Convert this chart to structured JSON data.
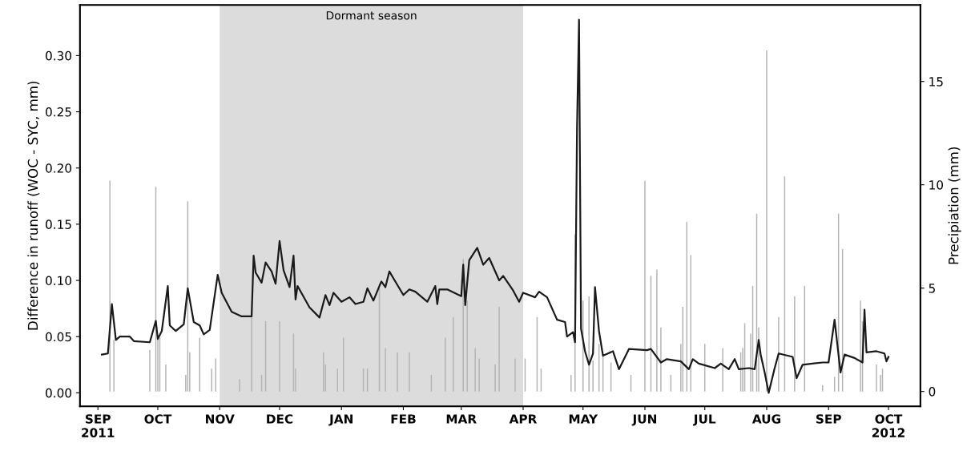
{
  "chart_data": {
    "type": "line",
    "xlabel": null,
    "ylabel": "Difference in runoff (WOC - SYC, mm)",
    "y2label": "Precipiation (mm)",
    "xlim": [
      "2011-08-23",
      "2012-10-17"
    ],
    "xticks": [
      {
        "value": "2011-09-01",
        "label": "SEP\n2011"
      },
      {
        "value": "2011-10-01",
        "label": "OCT"
      },
      {
        "value": "2011-11-01",
        "label": "NOV"
      },
      {
        "value": "2011-12-01",
        "label": "DEC"
      },
      {
        "value": "2012-01-01",
        "label": "JAN"
      },
      {
        "value": "2012-02-01",
        "label": "FEB"
      },
      {
        "value": "2012-03-01",
        "label": "MAR"
      },
      {
        "value": "2012-04-01",
        "label": "APR"
      },
      {
        "value": "2012-05-01",
        "label": "MAY"
      },
      {
        "value": "2012-06-01",
        "label": "JUN"
      },
      {
        "value": "2012-07-01",
        "label": "JUL"
      },
      {
        "value": "2012-08-01",
        "label": "AUG"
      },
      {
        "value": "2012-09-01",
        "label": "SEP"
      },
      {
        "value": "2012-10-01",
        "label": "OCT\n2012"
      }
    ],
    "ylim": [
      -0.012,
      0.345
    ],
    "yticks": [
      {
        "value": 0,
        "label": "0.00"
      },
      {
        "value": 0.05,
        "label": "0.05"
      },
      {
        "value": 0.1,
        "label": "0.10"
      },
      {
        "value": 0.15,
        "label": "0.15"
      },
      {
        "value": 0.2,
        "label": "0.20"
      },
      {
        "value": 0.25,
        "label": "0.25"
      },
      {
        "value": 0.3,
        "label": "0.30"
      }
    ],
    "y2lim": [
      -0.72,
      18.7
    ],
    "y2ticks": [
      0,
      5,
      10,
      15
    ],
    "grid": false,
    "bands": [
      {
        "axis": "x",
        "from": "2011-11-01",
        "to": "2012-04-01",
        "label": "Dormant season",
        "color": "#dcdcdc"
      }
    ],
    "series": [
      {
        "type": "bar",
        "axis": "y2",
        "color": "#b4b4b4",
        "x": [
          "2011-09-07",
          "2011-09-09",
          "2011-09-27",
          "2011-09-30",
          "2011-10-01",
          "2011-10-02",
          "2011-10-05",
          "2011-10-15",
          "2011-10-16",
          "2011-10-17",
          "2011-10-22",
          "2011-10-28",
          "2011-10-30",
          "2011-11-11",
          "2011-11-17",
          "2011-11-22",
          "2011-11-24",
          "2011-12-01",
          "2011-12-08",
          "2011-12-09",
          "2011-12-23",
          "2011-12-24",
          "2011-12-30",
          "2012-01-02",
          "2012-01-12",
          "2012-01-14",
          "2012-01-20",
          "2012-01-23",
          "2012-01-29",
          "2012-02-04",
          "2012-02-15",
          "2012-02-22",
          "2012-02-26",
          "2012-03-02",
          "2012-03-04",
          "2012-03-08",
          "2012-03-10",
          "2012-03-18",
          "2012-03-20",
          "2012-03-28",
          "2012-04-02",
          "2012-04-08",
          "2012-04-10",
          "2012-04-25",
          "2012-04-27",
          "2012-05-01",
          "2012-05-04",
          "2012-05-06",
          "2012-05-09",
          "2012-05-11",
          "2012-05-15",
          "2012-05-25",
          "2012-06-01",
          "2012-06-04",
          "2012-06-07",
          "2012-06-09",
          "2012-06-14",
          "2012-06-19",
          "2012-06-20",
          "2012-06-22",
          "2012-06-24",
          "2012-07-01",
          "2012-07-10",
          "2012-07-19",
          "2012-07-20",
          "2012-07-21",
          "2012-07-24",
          "2012-07-25",
          "2012-07-27",
          "2012-07-28",
          "2012-08-01",
          "2012-08-07",
          "2012-08-10",
          "2012-08-15",
          "2012-08-20",
          "2012-08-29",
          "2012-09-04",
          "2012-09-06",
          "2012-09-08",
          "2012-09-17",
          "2012-09-18",
          "2012-09-25",
          "2012-09-27",
          "2012-09-28"
        ],
        "values": [
          10.2,
          2.5,
          2.0,
          9.9,
          2.6,
          2.6,
          1.3,
          0.8,
          9.2,
          1.9,
          2.6,
          1.1,
          1.6,
          0.6,
          4.4,
          0.8,
          3.4,
          3.4,
          2.8,
          1.1,
          1.9,
          1.3,
          1.1,
          2.6,
          1.1,
          1.1,
          5.0,
          2.1,
          1.9,
          1.9,
          0.8,
          2.6,
          3.6,
          6.4,
          4.4,
          2.1,
          1.6,
          1.3,
          4.1,
          1.6,
          1.6,
          3.6,
          1.1,
          0.8,
          7.6,
          4.4,
          4.6,
          1.5,
          2.3,
          1.7,
          1.4,
          0.8,
          10.2,
          5.6,
          5.9,
          3.1,
          0.8,
          2.3,
          4.1,
          8.2,
          6.6,
          2.3,
          2.1,
          1.9,
          2.1,
          3.3,
          2.8,
          5.1,
          8.6,
          3.1,
          16.5,
          3.6,
          10.4,
          4.6,
          5.1,
          0.3,
          0.7,
          8.6,
          6.9,
          4.4,
          3.4,
          1.3,
          0.8,
          1.1
        ]
      },
      {
        "color": "#1a1a1a",
        "x": [
          "2011-09-03",
          "2011-09-06",
          "2011-09-08",
          "2011-09-10",
          "2011-09-12",
          "2011-09-17",
          "2011-09-19",
          "2011-09-27",
          "2011-09-30",
          "2011-10-01",
          "2011-10-03",
          "2011-10-06",
          "2011-10-07",
          "2011-10-10",
          "2011-10-14",
          "2011-10-16",
          "2011-10-19",
          "2011-10-22",
          "2011-10-24",
          "2011-10-27",
          "2011-10-31",
          "2011-11-02",
          "2011-11-07",
          "2011-11-12",
          "2011-11-17",
          "2011-11-18",
          "2011-11-19",
          "2011-11-22",
          "2011-11-24",
          "2011-11-27",
          "2011-11-29",
          "2011-12-01",
          "2011-12-03",
          "2011-12-06",
          "2011-12-08",
          "2011-12-09",
          "2011-12-10",
          "2011-12-16",
          "2011-12-21",
          "2011-12-24",
          "2011-12-26",
          "2011-12-28",
          "2012-01-01",
          "2012-01-05",
          "2012-01-08",
          "2012-01-12",
          "2012-01-14",
          "2012-01-17",
          "2012-01-20",
          "2012-01-21",
          "2012-01-23",
          "2012-01-25",
          "2012-01-28",
          "2012-02-01",
          "2012-02-04",
          "2012-02-07",
          "2012-02-13",
          "2012-02-17",
          "2012-02-18",
          "2012-02-19",
          "2012-02-23",
          "2012-03-01",
          "2012-03-02",
          "2012-03-03",
          "2012-03-05",
          "2012-03-09",
          "2012-03-12",
          "2012-03-15",
          "2012-03-20",
          "2012-03-22",
          "2012-03-27",
          "2012-03-30",
          "2012-04-01",
          "2012-04-07",
          "2012-04-09",
          "2012-04-13",
          "2012-04-18",
          "2012-04-22",
          "2012-04-23",
          "2012-04-26",
          "2012-04-27",
          "2012-04-28",
          "2012-04-29",
          "2012-04-30",
          "2012-05-02",
          "2012-05-04",
          "2012-05-06",
          "2012-05-07",
          "2012-05-09",
          "2012-05-11",
          "2012-05-16",
          "2012-05-19",
          "2012-05-24",
          "2012-06-02",
          "2012-06-04",
          "2012-06-09",
          "2012-06-12",
          "2012-06-19",
          "2012-06-23",
          "2012-06-25",
          "2012-06-28",
          "2012-07-06",
          "2012-07-09",
          "2012-07-13",
          "2012-07-16",
          "2012-07-18",
          "2012-07-23",
          "2012-07-26",
          "2012-07-28",
          "2012-07-29",
          "2012-07-31",
          "2012-08-02",
          "2012-08-05",
          "2012-08-07",
          "2012-08-14",
          "2012-08-16",
          "2012-08-19",
          "2012-08-29",
          "2012-09-01",
          "2012-09-04",
          "2012-09-07",
          "2012-09-09",
          "2012-09-14",
          "2012-09-18",
          "2012-09-19",
          "2012-09-20",
          "2012-09-25",
          "2012-09-29",
          "2012-09-30",
          "2012-10-01"
        ],
        "values": [
          0.034,
          0.035,
          0.079,
          0.047,
          0.05,
          0.05,
          0.046,
          0.045,
          0.064,
          0.048,
          0.055,
          0.095,
          0.06,
          0.055,
          0.061,
          0.093,
          0.063,
          0.06,
          0.052,
          0.056,
          0.105,
          0.089,
          0.072,
          0.068,
          0.068,
          0.122,
          0.107,
          0.098,
          0.116,
          0.108,
          0.097,
          0.135,
          0.109,
          0.094,
          0.122,
          0.083,
          0.095,
          0.076,
          0.067,
          0.087,
          0.078,
          0.089,
          0.081,
          0.085,
          0.079,
          0.081,
          0.093,
          0.082,
          0.095,
          0.099,
          0.094,
          0.108,
          0.099,
          0.087,
          0.092,
          0.09,
          0.081,
          0.095,
          0.079,
          0.092,
          0.092,
          0.086,
          0.114,
          0.078,
          0.118,
          0.129,
          0.114,
          0.12,
          0.1,
          0.104,
          0.091,
          0.081,
          0.089,
          0.085,
          0.09,
          0.085,
          0.065,
          0.063,
          0.05,
          0.054,
          0.045,
          0.236,
          0.332,
          0.057,
          0.037,
          0.025,
          0.035,
          0.094,
          0.055,
          0.033,
          0.037,
          0.021,
          0.039,
          0.038,
          0.039,
          0.027,
          0.03,
          0.028,
          0.021,
          0.03,
          0.026,
          0.022,
          0.026,
          0.021,
          0.03,
          0.021,
          0.022,
          0.021,
          0.047,
          0.034,
          0.018,
          0.0,
          0.022,
          0.035,
          0.032,
          0.013,
          0.025,
          0.027,
          0.027,
          0.065,
          0.018,
          0.034,
          0.031,
          0.027,
          0.074,
          0.036,
          0.037,
          0.035,
          0.028,
          0.032
        ]
      }
    ]
  }
}
